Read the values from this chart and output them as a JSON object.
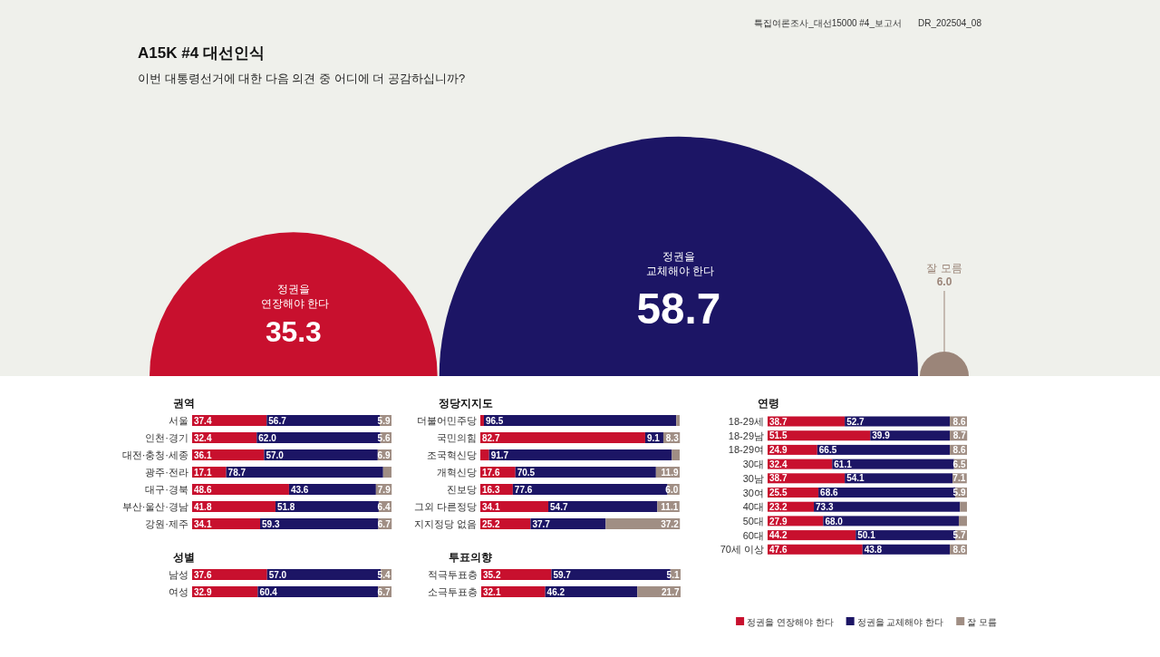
{
  "chart_data": [
    {
      "type": "other",
      "title": "A15K #4 대선인식",
      "subtitle": "이번 대통령선거에 대한 다음 의견 중 어디에 더 공감하십니까?",
      "annotations": [
        "특집여론조사_대선15000 #4_보고서",
        "DR_202504_08"
      ],
      "categories": [
        "정권을 연장해야 한다",
        "정권을 교체해야 한다",
        "잘 모름"
      ],
      "values": [
        35.3,
        58.7,
        6.0
      ],
      "colors": [
        "#c8102e",
        "#1c1565",
        "#9b8579"
      ],
      "value_labels": [
        "35.3",
        "58.7",
        "6.0"
      ]
    },
    {
      "type": "bar",
      "title": "권역",
      "orientation": "horizontal",
      "stacked": true,
      "tick_labels": "y",
      "xlim": [
        0,
        100
      ],
      "categories": [
        "서울",
        "인천·경기",
        "대전·충청·세종",
        "광주·전라",
        "대구·경북",
        "부산·울산·경남",
        "강원·제주"
      ],
      "series": [
        {
          "color": "#c8102e",
          "values": [
            37.4,
            32.4,
            36.1,
            17.1,
            48.6,
            41.8,
            34.1
          ],
          "value_labels": [
            "37.4",
            "32.4",
            "36.1",
            "17.1",
            "48.6",
            "41.8",
            "34.1"
          ]
        },
        {
          "color": "#1c1565",
          "values": [
            56.7,
            62.0,
            57.0,
            78.7,
            43.6,
            51.8,
            59.3
          ],
          "value_labels": [
            "56.7",
            "62.0",
            "57.0",
            "78.7",
            "43.6",
            "51.8",
            "59.3"
          ]
        },
        {
          "color": "#a08e84",
          "values": [
            5.9,
            5.6,
            6.9,
            4.2,
            7.9,
            6.4,
            6.7
          ],
          "value_labels": [
            "5.9",
            "5.6",
            "6.9",
            null,
            "7.9",
            "6.4",
            "6.7"
          ]
        }
      ]
    },
    {
      "type": "bar",
      "title": "정당지지도",
      "orientation": "horizontal",
      "stacked": true,
      "tick_labels": "y",
      "xlim": [
        0,
        100
      ],
      "categories": [
        "더불어민주당",
        "국민의힘",
        "조국혁신당",
        "개혁신당",
        "진보당",
        "그외 다른정당",
        "지지정당 없음"
      ],
      "series": [
        {
          "color": "#c8102e",
          "values": [
            1.8,
            82.7,
            4.4,
            17.6,
            16.3,
            34.1,
            25.2
          ],
          "value_labels": [
            null,
            "82.7",
            null,
            "17.6",
            "16.3",
            "34.1",
            "25.2"
          ]
        },
        {
          "color": "#1c1565",
          "values": [
            96.5,
            9.1,
            91.7,
            70.5,
            77.6,
            54.7,
            37.7
          ],
          "value_labels": [
            "96.5",
            "9.1",
            "91.7",
            "70.5",
            "77.6",
            "54.7",
            "37.7"
          ]
        },
        {
          "color": "#a08e84",
          "values": [
            1.7,
            8.3,
            3.9,
            11.9,
            6.0,
            11.1,
            37.2
          ],
          "value_labels": [
            null,
            "8.3",
            null,
            "11.9",
            "6.0",
            "11.1",
            "37.2"
          ]
        }
      ]
    },
    {
      "type": "bar",
      "title": "연령",
      "orientation": "horizontal",
      "stacked": true,
      "tick_labels": "y",
      "xlim": [
        0,
        100
      ],
      "categories": [
        "18-29세",
        "18-29남",
        "18-29여",
        "30대",
        "30남",
        "30여",
        "40대",
        "50대",
        "60대",
        "70세 이상"
      ],
      "series": [
        {
          "color": "#c8102e",
          "values": [
            38.7,
            51.5,
            24.9,
            32.4,
            38.7,
            25.5,
            23.2,
            27.9,
            44.2,
            47.6
          ],
          "value_labels": [
            "38.7",
            "51.5",
            "24.9",
            "32.4",
            "38.7",
            "25.5",
            "23.2",
            "27.9",
            "44.2",
            "47.6"
          ]
        },
        {
          "color": "#1c1565",
          "values": [
            52.7,
            39.9,
            66.5,
            61.1,
            54.1,
            68.6,
            73.3,
            68.0,
            50.1,
            43.8
          ],
          "value_labels": [
            "52.7",
            "39.9",
            "66.5",
            "61.1",
            "54.1",
            "68.6",
            "73.3",
            "68.0",
            "50.1",
            "43.8"
          ]
        },
        {
          "color": "#a08e84",
          "values": [
            8.6,
            8.7,
            8.6,
            6.5,
            7.1,
            5.9,
            3.5,
            4.1,
            5.7,
            8.6
          ],
          "value_labels": [
            "8.6",
            "8.7",
            "8.6",
            "6.5",
            "7.1",
            "5.9",
            null,
            null,
            "5.7",
            "8.6"
          ]
        }
      ]
    },
    {
      "type": "bar",
      "title": "성별",
      "orientation": "horizontal",
      "stacked": true,
      "tick_labels": "y",
      "xlim": [
        0,
        100
      ],
      "categories": [
        "남성",
        "여성"
      ],
      "series": [
        {
          "color": "#c8102e",
          "values": [
            37.6,
            32.9
          ],
          "value_labels": [
            "37.6",
            "32.9"
          ]
        },
        {
          "color": "#1c1565",
          "values": [
            57.0,
            60.4
          ],
          "value_labels": [
            "57.0",
            "60.4"
          ]
        },
        {
          "color": "#a08e84",
          "values": [
            5.4,
            6.7
          ],
          "value_labels": [
            "5.4",
            "6.7"
          ]
        }
      ]
    },
    {
      "type": "bar",
      "title": "투표의향",
      "orientation": "horizontal",
      "stacked": true,
      "tick_labels": "y",
      "xlim": [
        0,
        100
      ],
      "legend": "bottom right",
      "categories": [
        "적극투표층",
        "소극투표층"
      ],
      "series": [
        {
          "name": "정권을 연장해야 한다",
          "color": "#c8102e",
          "values": [
            35.2,
            32.1
          ],
          "value_labels": [
            "35.2",
            "32.1"
          ]
        },
        {
          "name": "정권을 교체해야 한다",
          "color": "#1c1565",
          "values": [
            59.7,
            46.2
          ],
          "value_labels": [
            "59.7",
            "46.2"
          ]
        },
        {
          "name": "잘 모름",
          "color": "#a08e84",
          "values": [
            5.1,
            21.7
          ],
          "value_labels": [
            "5.1",
            "21.7"
          ]
        }
      ]
    }
  ]
}
